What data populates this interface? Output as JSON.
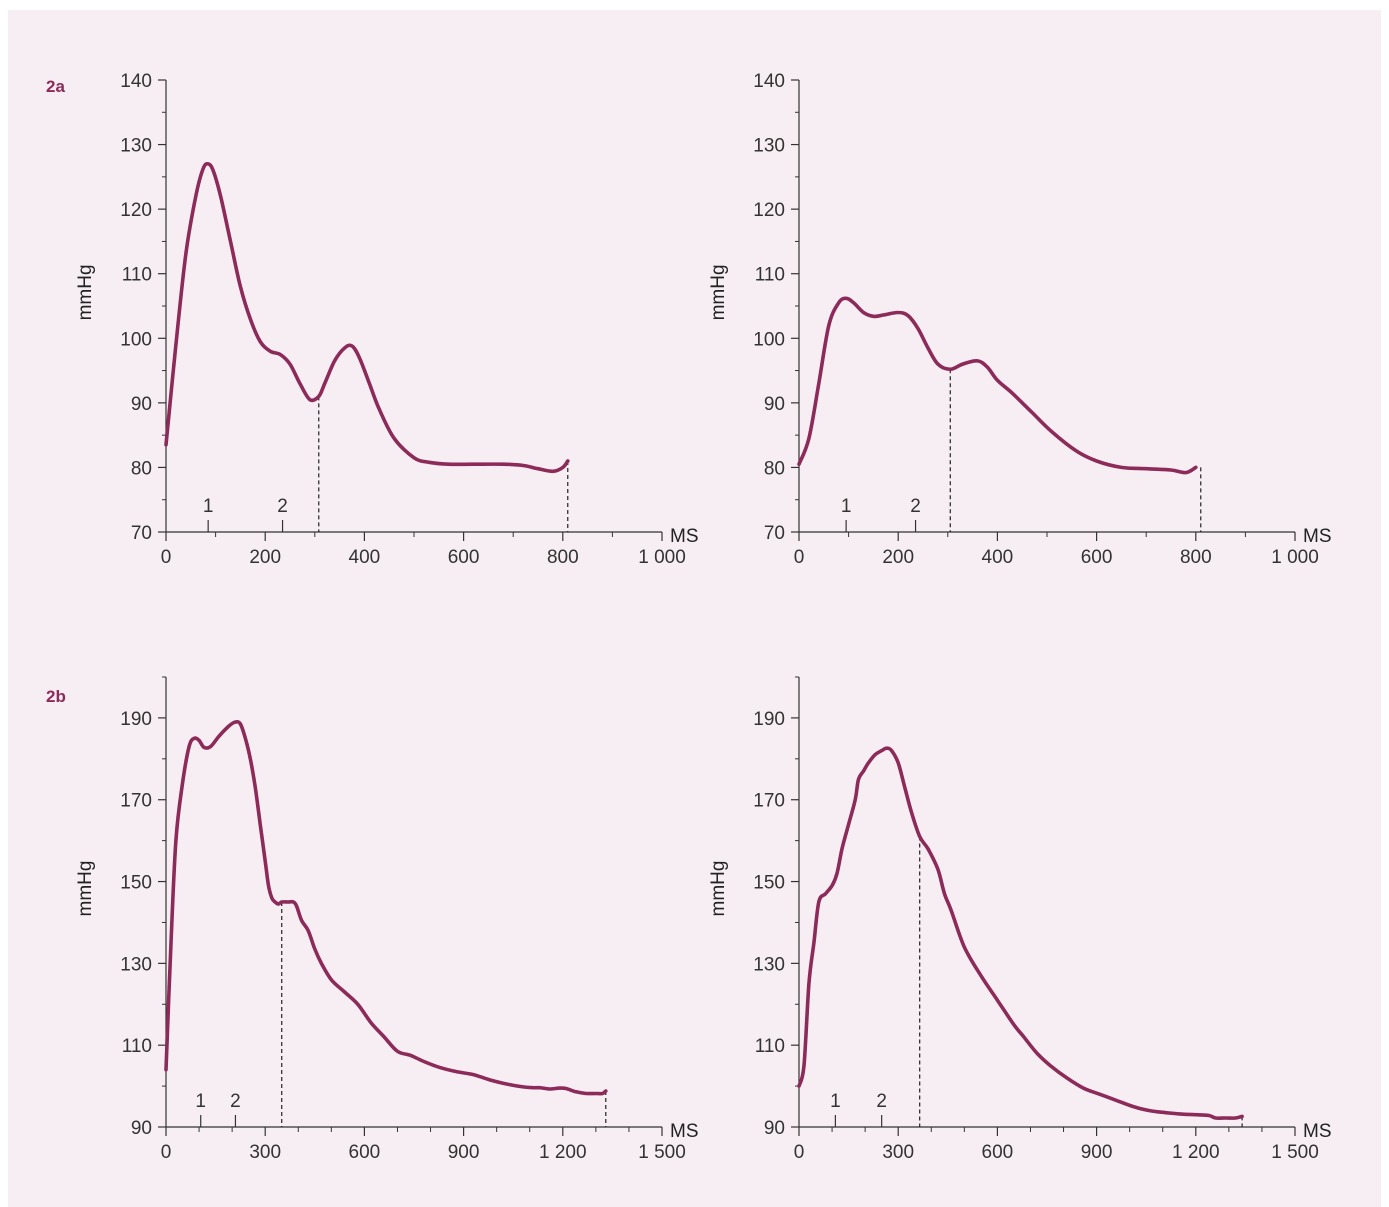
{
  "colors": {
    "background": "#f7eef3",
    "curve": "#8c2b5a",
    "label": "#8c2b5a",
    "axis": "#333333"
  },
  "panel_labels": {
    "a": "2a",
    "b": "2b"
  },
  "chart_data": [
    {
      "type": "line",
      "panel": "2a",
      "ylabel": "mmHg",
      "xlabel": "MS",
      "xlim": [
        0,
        1000
      ],
      "ylim": [
        70,
        140
      ],
      "xticks": [
        0,
        200,
        400,
        600,
        800,
        1000
      ],
      "xtick_labels": [
        "0",
        "200",
        "400",
        "600",
        "800",
        "1 000"
      ],
      "yticks": [
        70,
        80,
        90,
        100,
        110,
        120,
        130,
        140
      ],
      "ytick_labels": [
        "70",
        "80",
        "90",
        "100",
        "110",
        "120",
        "130",
        "140"
      ],
      "x_minor_step": 100,
      "y_minor_step": 5,
      "markers": [
        {
          "label": "1",
          "x": 85
        },
        {
          "label": "2",
          "x": 235
        }
      ],
      "dashed_x": [
        308,
        810
      ],
      "x": [
        0,
        20,
        40,
        60,
        75,
        85,
        95,
        110,
        130,
        150,
        170,
        190,
        210,
        230,
        250,
        270,
        290,
        308,
        320,
        340,
        360,
        375,
        390,
        410,
        430,
        460,
        500,
        530,
        570,
        620,
        680,
        720,
        750,
        780,
        800,
        810
      ],
      "y": [
        83.5,
        99,
        113,
        122,
        126.3,
        127,
        126,
        122,
        115,
        108,
        103,
        99.5,
        98,
        97.5,
        96,
        93,
        90.5,
        91,
        93,
        96.5,
        98.5,
        98.8,
        97,
        93,
        89,
        84.5,
        81.5,
        80.8,
        80.5,
        80.5,
        80.5,
        80.3,
        79.8,
        79.4,
        80,
        81
      ]
    },
    {
      "type": "line",
      "panel": "2a",
      "ylabel": "mmHg",
      "xlabel": "MS",
      "xlim": [
        0,
        1000
      ],
      "ylim": [
        70,
        140
      ],
      "xticks": [
        0,
        200,
        400,
        600,
        800,
        1000
      ],
      "xtick_labels": [
        "0",
        "200",
        "400",
        "600",
        "800",
        "1 000"
      ],
      "yticks": [
        70,
        80,
        90,
        100,
        110,
        120,
        130,
        140
      ],
      "ytick_labels": [
        "70",
        "80",
        "90",
        "100",
        "110",
        "120",
        "130",
        "140"
      ],
      "x_minor_step": 100,
      "y_minor_step": 5,
      "markers": [
        {
          "label": "1",
          "x": 95
        },
        {
          "label": "2",
          "x": 235
        }
      ],
      "dashed_x": [
        305,
        810
      ],
      "x": [
        0,
        20,
        40,
        60,
        80,
        95,
        110,
        130,
        150,
        170,
        200,
        220,
        240,
        260,
        280,
        305,
        330,
        360,
        380,
        400,
        430,
        470,
        510,
        560,
        600,
        650,
        700,
        750,
        780,
        800
      ],
      "y": [
        80.5,
        84.5,
        93,
        102,
        105.5,
        106.2,
        105.5,
        104,
        103.4,
        103.6,
        104,
        103.5,
        101.5,
        98.5,
        96,
        95.2,
        96,
        96.5,
        95.5,
        93.5,
        91.5,
        88.5,
        85.5,
        82.5,
        81,
        80,
        79.8,
        79.6,
        79.2,
        80
      ]
    },
    {
      "type": "line",
      "panel": "2b",
      "ylabel": "mmHg",
      "xlabel": "MS",
      "xlim": [
        0,
        1500
      ],
      "ylim": [
        90,
        200
      ],
      "xticks": [
        0,
        300,
        600,
        900,
        1200,
        1500
      ],
      "xtick_labels": [
        "0",
        "300",
        "600",
        "900",
        "1 200",
        "1 500"
      ],
      "yticks": [
        90,
        110,
        130,
        150,
        170,
        190
      ],
      "ytick_labels": [
        "90",
        "110",
        "130",
        "150",
        "170",
        "190"
      ],
      "x_minor_step": 100,
      "y_minor_step": 10,
      "markers": [
        {
          "label": "1",
          "x": 105
        },
        {
          "label": "2",
          "x": 210
        }
      ],
      "dashed_x": [
        350,
        1330
      ],
      "x": [
        0,
        15,
        30,
        50,
        70,
        85,
        100,
        115,
        135,
        160,
        190,
        210,
        225,
        240,
        255,
        270,
        285,
        300,
        310,
        320,
        330,
        340,
        350,
        370,
        385,
        395,
        410,
        430,
        450,
        470,
        500,
        540,
        580,
        620,
        660,
        700,
        740,
        780,
        830,
        880,
        930,
        980,
        1030,
        1080,
        1110,
        1130,
        1160,
        1190,
        1210,
        1240,
        1270,
        1300,
        1320,
        1330
      ],
      "y": [
        104,
        135,
        160,
        174,
        183,
        185,
        184.5,
        182.8,
        183,
        185.5,
        188,
        189,
        188.5,
        185,
        180,
        173,
        164,
        155,
        149,
        146,
        145,
        144.5,
        145,
        145,
        145,
        144,
        140.5,
        138,
        133.5,
        130,
        126,
        123,
        120,
        115.5,
        112,
        108.5,
        107.5,
        106,
        104.5,
        103.5,
        102.8,
        101.5,
        100.5,
        99.8,
        99.6,
        99.6,
        99.3,
        99.5,
        99.4,
        98.6,
        98.2,
        98.2,
        98.2,
        98.8
      ]
    },
    {
      "type": "line",
      "panel": "2b",
      "ylabel": "mmHg",
      "xlabel": "MS",
      "xlim": [
        0,
        1500
      ],
      "ylim": [
        90,
        200
      ],
      "xticks": [
        0,
        300,
        600,
        900,
        1200,
        1500
      ],
      "xtick_labels": [
        "0",
        "300",
        "600",
        "900",
        "1 200",
        "1 500"
      ],
      "yticks": [
        90,
        110,
        130,
        150,
        170,
        190
      ],
      "ytick_labels": [
        "90",
        "110",
        "130",
        "150",
        "170",
        "190"
      ],
      "x_minor_step": 100,
      "y_minor_step": 10,
      "markers": [
        {
          "label": "1",
          "x": 110
        },
        {
          "label": "2",
          "x": 250
        }
      ],
      "dashed_x": [
        365,
        1340
      ],
      "x": [
        0,
        15,
        30,
        45,
        60,
        80,
        100,
        115,
        130,
        150,
        170,
        180,
        195,
        210,
        230,
        250,
        265,
        280,
        300,
        320,
        340,
        365,
        390,
        420,
        440,
        460,
        500,
        550,
        600,
        650,
        680,
        720,
        760,
        810,
        860,
        910,
        960,
        1010,
        1060,
        1110,
        1150,
        1200,
        1240,
        1260,
        1290,
        1320,
        1340
      ],
      "y": [
        100,
        105,
        125,
        135,
        145,
        147,
        149,
        152,
        158,
        164,
        170,
        175,
        177,
        179,
        181,
        182,
        182.6,
        182,
        179,
        173,
        167,
        161,
        158,
        153,
        147,
        143,
        134,
        127,
        121,
        115,
        112,
        108,
        105,
        102,
        99.5,
        98,
        96.5,
        95,
        94,
        93.5,
        93.2,
        93,
        92.8,
        92.2,
        92.2,
        92.2,
        92.6
      ]
    }
  ]
}
